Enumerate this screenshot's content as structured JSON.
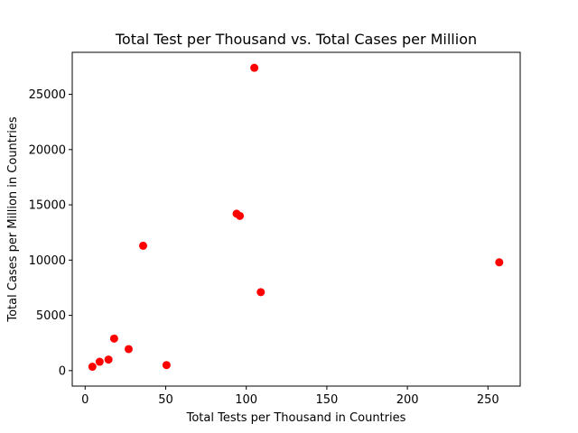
{
  "chart_data": {
    "type": "scatter",
    "title": "Total Test per Thousand vs. Total Cases per Million",
    "xlabel": "Total Tests per Thousand in Countries",
    "ylabel": "Total Cases per Million in Countries",
    "xlim": [
      -8,
      270
    ],
    "ylim": [
      -1400,
      28800
    ],
    "xticks": [
      0,
      50,
      100,
      150,
      200,
      250
    ],
    "yticks": [
      0,
      5000,
      10000,
      15000,
      20000,
      25000
    ],
    "grid": false,
    "marker_color": "#ff0000",
    "points": [
      {
        "x": 105,
        "y": 27400
      },
      {
        "x": 94,
        "y": 14200
      },
      {
        "x": 96,
        "y": 14000
      },
      {
        "x": 36,
        "y": 11300
      },
      {
        "x": 257,
        "y": 9800
      },
      {
        "x": 109,
        "y": 7100
      },
      {
        "x": 18,
        "y": 2900
      },
      {
        "x": 27,
        "y": 1950
      },
      {
        "x": 14.5,
        "y": 1000
      },
      {
        "x": 9,
        "y": 800
      },
      {
        "x": 50.5,
        "y": 500
      },
      {
        "x": 4.5,
        "y": 350
      }
    ]
  }
}
